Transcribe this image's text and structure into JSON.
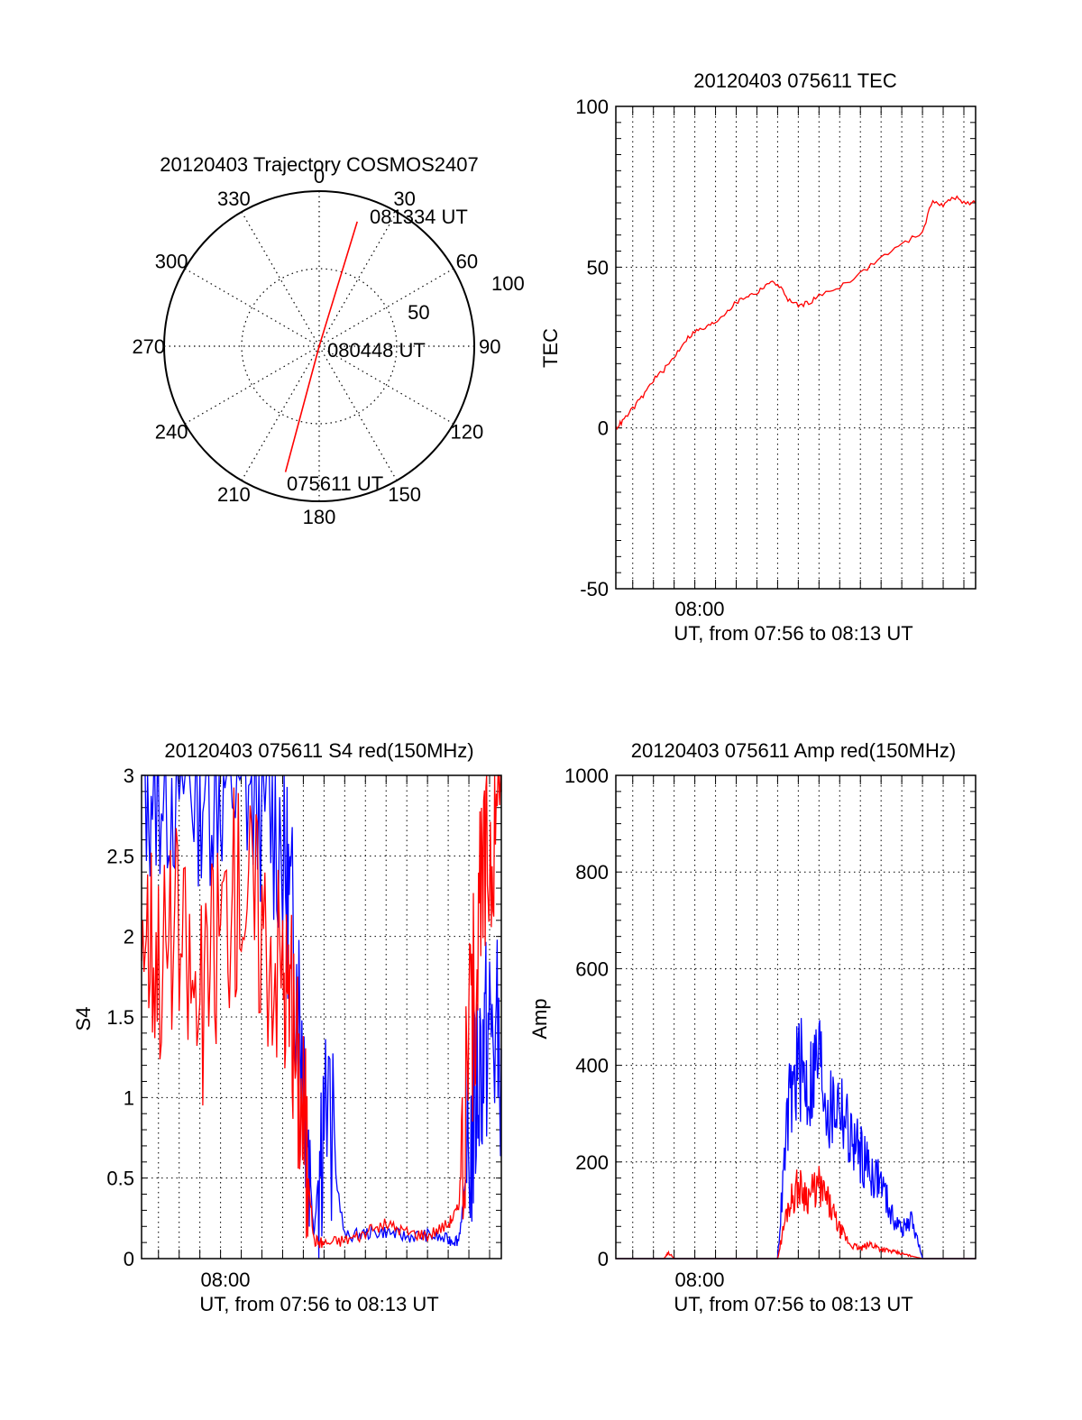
{
  "colors": {
    "red": "#ff0000",
    "blue": "#0000ff",
    "axis": "#000000"
  },
  "chart_data": [
    {
      "id": "polar",
      "type": "scatter",
      "coordinate_system": "polar",
      "title": "20120403 Trajectory COSMOS2407",
      "azimuth_labels": [
        "0",
        "30",
        "60",
        "90",
        "120",
        "150",
        "180",
        "210",
        "240",
        "270",
        "300",
        "330"
      ],
      "radial_labels": [
        "50",
        "100"
      ],
      "radial_range": [
        0,
        100
      ],
      "grid": true,
      "series": [
        {
          "color": "red",
          "points": [
            {
              "az": 17,
              "r": 84
            },
            {
              "az": 15,
              "r": 0
            },
            {
              "az": 195,
              "r": 84
            }
          ]
        }
      ],
      "annotations": [
        "081334 UT",
        "080448 UT",
        "075611 UT"
      ]
    },
    {
      "id": "tec",
      "type": "line",
      "title": "20120403 075611 TEC",
      "xlabel": "UT, from 07:56 to 08:13 UT",
      "ylabel": "TEC",
      "xlim": [
        "07:56:11",
        "08:13:34"
      ],
      "ylim": [
        -50,
        100
      ],
      "yticks": [
        "100",
        "50",
        "0",
        "-50"
      ],
      "xtick_label": "08:00",
      "grid": true,
      "series": [
        {
          "color": "red",
          "x": [
            "07:56:11",
            "07:56:30",
            "07:57:00",
            "07:57:30",
            "07:58:00",
            "07:58:30",
            "07:59:00",
            "07:59:30",
            "08:00:00",
            "08:00:30",
            "08:01:00",
            "08:01:30",
            "08:02:00",
            "08:02:30",
            "08:03:00",
            "08:03:30",
            "08:04:00",
            "08:04:30",
            "08:05:00",
            "08:05:30",
            "08:06:00",
            "08:07:00",
            "08:08:00",
            "08:09:00",
            "08:10:00",
            "08:11:00",
            "08:11:30",
            "08:12:00",
            "08:12:30",
            "08:13:00",
            "08:13:34"
          ],
          "y": [
            0,
            2,
            6,
            10,
            15,
            18,
            22,
            27,
            30,
            31,
            33,
            36,
            39,
            41,
            42,
            45,
            45,
            40,
            38,
            39,
            41,
            44,
            48,
            53,
            57,
            61,
            71,
            69,
            72,
            70,
            70
          ]
        }
      ]
    },
    {
      "id": "s4",
      "type": "line",
      "title": "20120403 075611 S4 red(150MHz)",
      "xlabel": "UT, from 07:56 to 08:13 UT",
      "ylabel": "S4",
      "xlim": [
        "07:56:11",
        "08:13:34"
      ],
      "ylim": [
        0,
        3
      ],
      "yticks": [
        "3",
        "2.5",
        "2",
        "1.5",
        "1",
        "0.5",
        "0"
      ],
      "xtick_label": "08:00",
      "grid": true,
      "series": [
        {
          "color": "blue",
          "x": [
            "07:56:11",
            "07:57:00",
            "07:58:00",
            "07:59:00",
            "08:00:00",
            "08:01:00",
            "08:02:00",
            "08:03:00",
            "08:03:30",
            "08:04:00",
            "08:04:30",
            "08:05:00",
            "08:06:00",
            "08:07:00",
            "08:08:00",
            "08:09:00",
            "08:10:00",
            "08:11:00",
            "08:11:30",
            "08:12:00",
            "08:12:30",
            "08:13:00",
            "08:13:34"
          ],
          "y": [
            3,
            3,
            3,
            3,
            3,
            3,
            2.9,
            2.6,
            2.0,
            1.3,
            0.12,
            1.0,
            0.12,
            0.14,
            0.15,
            0.12,
            0.13,
            0.1,
            0.1,
            0.6,
            1.2,
            1.4,
            1.3
          ]
        },
        {
          "color": "red",
          "x": [
            "07:56:11",
            "07:57:00",
            "07:58:00",
            "07:59:00",
            "08:00:00",
            "08:01:00",
            "08:02:00",
            "08:03:00",
            "08:03:30",
            "08:04:00",
            "08:04:30",
            "08:05:00",
            "08:06:00",
            "08:07:00",
            "08:08:00",
            "08:09:00",
            "08:10:00",
            "08:11:00",
            "08:11:30",
            "08:12:00",
            "08:12:30",
            "08:13:00",
            "08:13:34"
          ],
          "y": [
            2.2,
            1.9,
            2.0,
            1.5,
            2.1,
            2.4,
            2.1,
            1.8,
            1.4,
            0.9,
            0.1,
            0.08,
            0.1,
            0.14,
            0.2,
            0.15,
            0.13,
            0.2,
            0.3,
            1.2,
            2.1,
            2.6,
            2.9
          ]
        }
      ]
    },
    {
      "id": "amp",
      "type": "line",
      "title": "20120403 075611 Amp red(150MHz)",
      "xlabel": "UT, from 07:56 to 08:13 UT",
      "ylabel": "Amp",
      "xlim": [
        "07:56:11",
        "08:13:34"
      ],
      "ylim": [
        0,
        1000
      ],
      "yticks": [
        "1000",
        "800",
        "600",
        "400",
        "200",
        "0"
      ],
      "xtick_label": "08:00",
      "grid": true,
      "series": [
        {
          "color": "blue",
          "x": [
            "07:56:11",
            "08:00:00",
            "08:04:00",
            "08:04:30",
            "08:05:00",
            "08:05:30",
            "08:06:00",
            "08:06:30",
            "08:07:00",
            "08:07:30",
            "08:08:00",
            "08:08:30",
            "08:09:00",
            "08:09:30",
            "08:10:00",
            "08:10:30",
            "08:11:00",
            "08:13:34"
          ],
          "y": [
            0,
            0,
            0,
            300,
            400,
            350,
            420,
            300,
            330,
            250,
            220,
            180,
            160,
            90,
            60,
            80,
            0,
            0
          ]
        },
        {
          "color": "red",
          "x": [
            "07:56:11",
            "07:58:30",
            "07:58:45",
            "07:59:00",
            "08:04:00",
            "08:04:30",
            "08:05:00",
            "08:05:30",
            "08:06:00",
            "08:06:30",
            "08:07:00",
            "08:07:30",
            "08:08:00",
            "08:08:30",
            "08:09:00",
            "08:09:30",
            "08:10:00",
            "08:10:30",
            "08:11:00",
            "08:13:34"
          ],
          "y": [
            0,
            0,
            12,
            0,
            0,
            110,
            150,
            130,
            150,
            110,
            60,
            30,
            20,
            30,
            20,
            15,
            10,
            5,
            0,
            0
          ]
        }
      ]
    }
  ]
}
